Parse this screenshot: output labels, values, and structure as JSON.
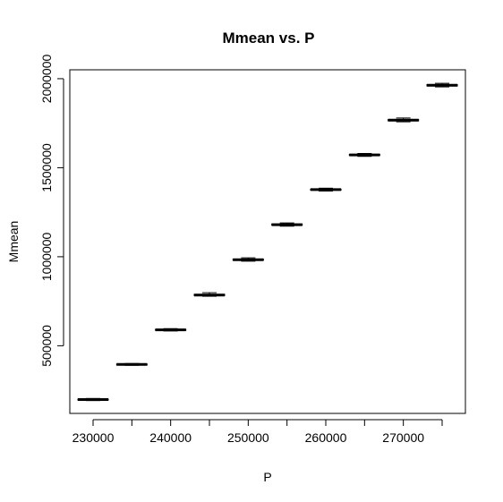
{
  "chart_data": {
    "type": "boxplot",
    "title": "Mmean vs. P",
    "xlabel": "P",
    "ylabel": "Mmean",
    "x_tick_labels": [
      "230000",
      "240000",
      "250000",
      "260000",
      "270000"
    ],
    "y_tick_labels": [
      "500000",
      "1000000",
      "1500000",
      "2000000"
    ],
    "y_ticks": [
      500000,
      1000000,
      1500000,
      2000000
    ],
    "ylim": [
      120000,
      2050000
    ],
    "grid": false,
    "legend": "none",
    "categories": [
      "230000",
      "235000",
      "240000",
      "245000",
      "250000",
      "255000",
      "260000",
      "265000",
      "270000",
      "275000"
    ],
    "boxes": [
      {
        "x": 230000,
        "min": 192000,
        "q1": 196000,
        "median": 198000,
        "q3": 200000,
        "max": 204000
      },
      {
        "x": 235000,
        "min": 390000,
        "q1": 393000,
        "median": 395000,
        "q3": 397000,
        "max": 400000
      },
      {
        "x": 240000,
        "min": 583000,
        "q1": 587000,
        "median": 589000,
        "q3": 592000,
        "max": 596000
      },
      {
        "x": 245000,
        "min": 778000,
        "q1": 782000,
        "median": 785000,
        "q3": 789000,
        "max": 798000
      },
      {
        "x": 250000,
        "min": 975000,
        "q1": 980000,
        "median": 983000,
        "q3": 987000,
        "max": 994000
      },
      {
        "x": 255000,
        "min": 1172000,
        "q1": 1177000,
        "median": 1180000,
        "q3": 1184000,
        "max": 1190000
      },
      {
        "x": 260000,
        "min": 1369000,
        "q1": 1374000,
        "median": 1377000,
        "q3": 1380000,
        "max": 1385000
      },
      {
        "x": 265000,
        "min": 1564000,
        "q1": 1569000,
        "median": 1572000,
        "q3": 1575000,
        "max": 1580000
      },
      {
        "x": 270000,
        "min": 1758000,
        "q1": 1763000,
        "median": 1767000,
        "q3": 1771000,
        "max": 1779000
      },
      {
        "x": 275000,
        "min": 1954000,
        "q1": 1959000,
        "median": 1963000,
        "q3": 1967000,
        "max": 1974000
      }
    ],
    "colors": {
      "box_fill": "#ffffff",
      "stroke": "#000000",
      "background": "#ffffff"
    }
  }
}
